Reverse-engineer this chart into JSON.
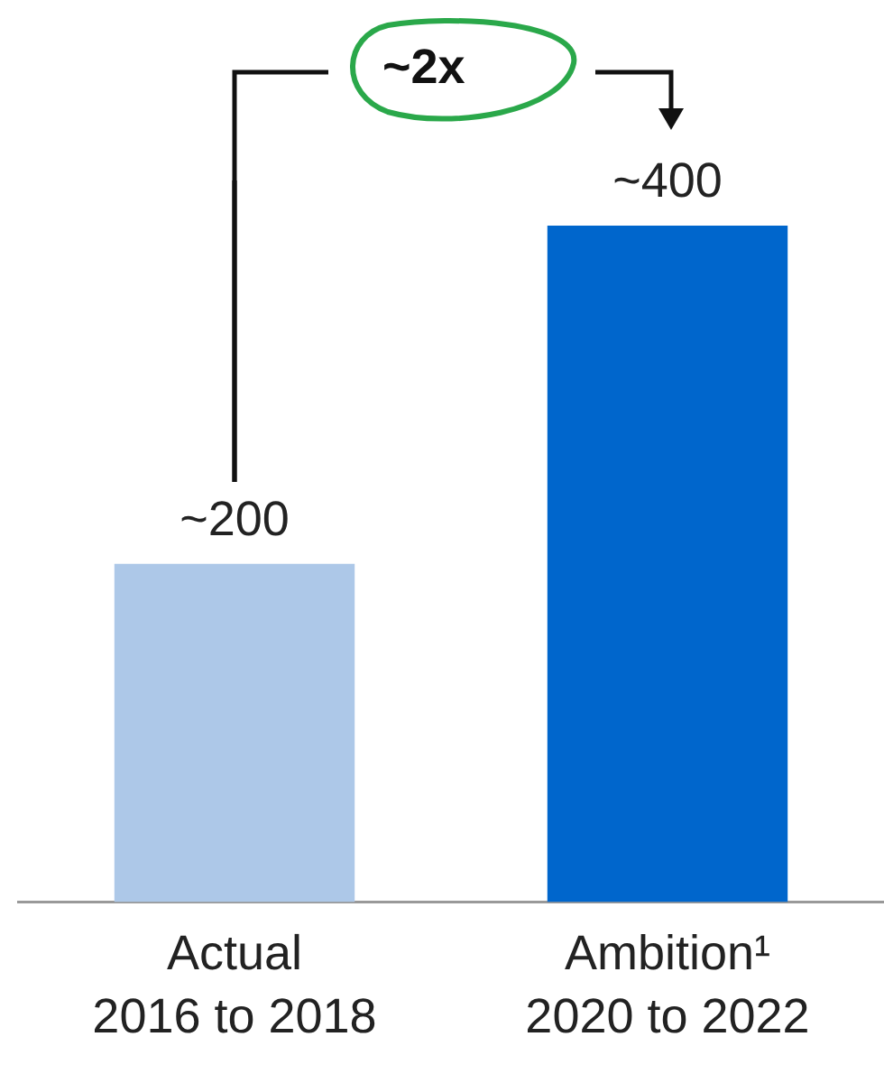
{
  "chart_data": {
    "type": "bar",
    "categories": [
      "Actual\n2016 to 2018",
      "Ambition¹\n2020 to 2022"
    ],
    "values": [
      200,
      400
    ],
    "colors": [
      "#adc8e8",
      "#0066cc"
    ],
    "value_labels": [
      "~200",
      "~400"
    ],
    "annotations": [
      "~2x"
    ],
    "legend": false
  }
}
